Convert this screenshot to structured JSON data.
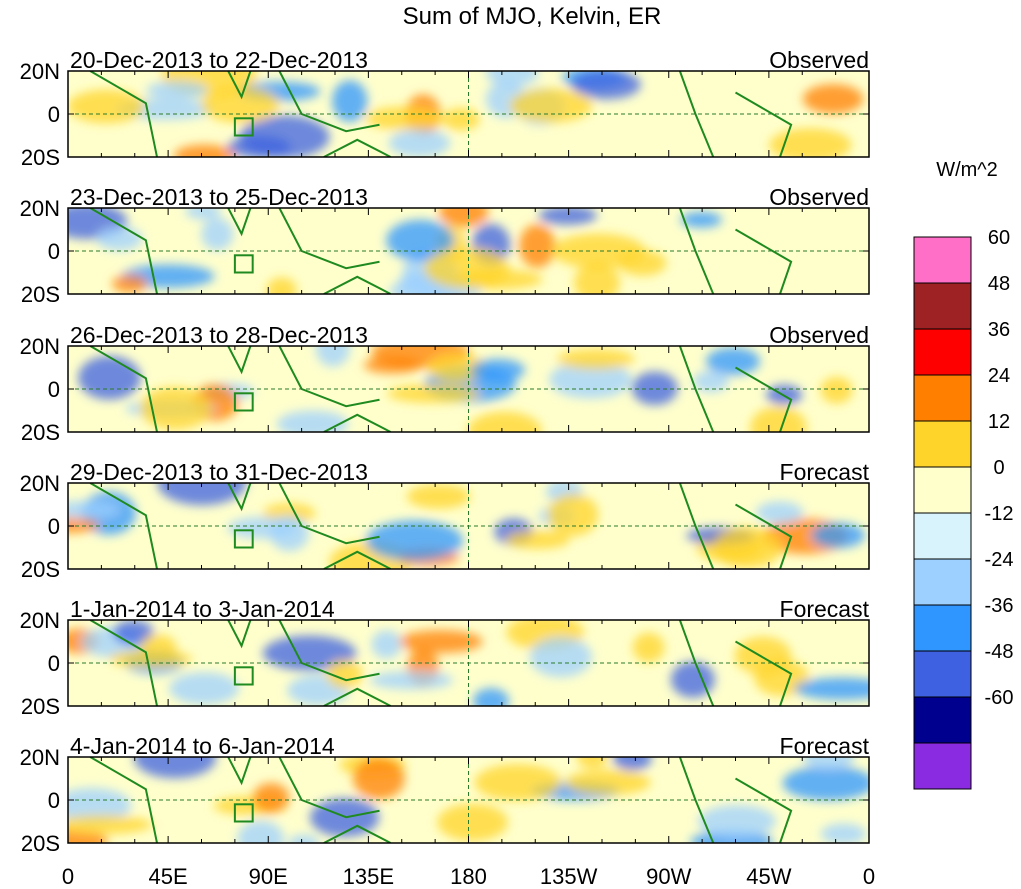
{
  "chart_data": {
    "type": "heatmap",
    "title": "Sum of MJO, Kelvin, ER",
    "units": "W/m^2",
    "x_ticks": [
      "0",
      "45E",
      "90E",
      "135E",
      "180",
      "135W",
      "90W",
      "45W",
      "0"
    ],
    "y_ticks": [
      "20N",
      "0",
      "20S"
    ],
    "xlim_degrees_east": [
      0,
      360
    ],
    "ylim_degrees": [
      -20,
      20
    ],
    "panels": [
      {
        "label": "20-Dec-2013 to 22-Dec-2013",
        "status": "Observed"
      },
      {
        "label": "23-Dec-2013 to 25-Dec-2013",
        "status": "Observed"
      },
      {
        "label": "26-Dec-2013 to 28-Dec-2013",
        "status": "Observed"
      },
      {
        "label": "29-Dec-2013 to 31-Dec-2013",
        "status": "Forecast"
      },
      {
        "label": "1-Jan-2014 to 3-Jan-2014",
        "status": "Forecast"
      },
      {
        "label": "4-Jan-2014 to 6-Jan-2014",
        "status": "Forecast"
      }
    ],
    "colorbar": {
      "levels": [
        "60",
        "48",
        "36",
        "24",
        "12",
        "0",
        "-12",
        "-24",
        "-36",
        "-48",
        "-60"
      ],
      "colors": [
        "#ff6ec7",
        "#9e2124",
        "#ff0000",
        "#ff7f00",
        "#ffd42a",
        "#ffffcc",
        "#d8f3fc",
        "#9dd0ff",
        "#2f95ff",
        "#3d61e0",
        "#00008f",
        "#8a2be2"
      ]
    }
  }
}
